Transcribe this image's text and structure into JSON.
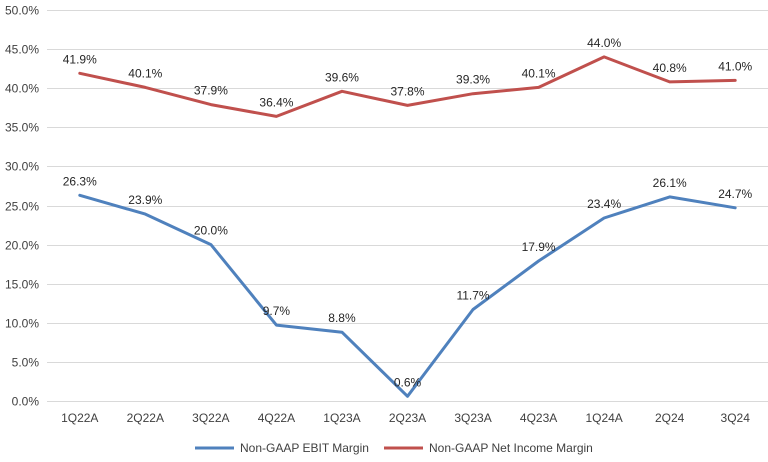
{
  "chart_data": {
    "type": "line",
    "categories": [
      "1Q22A",
      "2Q22A",
      "3Q22A",
      "4Q22A",
      "1Q23A",
      "2Q23A",
      "3Q23A",
      "4Q23A",
      "1Q24A",
      "2Q24",
      "3Q24"
    ],
    "series": [
      {
        "name": "Non-GAAP EBIT Margin",
        "color": "#4F81BD",
        "values": [
          26.3,
          23.9,
          20.0,
          9.7,
          8.8,
          0.6,
          11.7,
          17.9,
          23.4,
          26.1,
          24.7
        ],
        "labels": [
          "26.3%",
          "23.9%",
          "20.0%",
          "9.7%",
          "8.8%",
          "0.6%",
          "11.7%",
          "17.9%",
          "23.4%",
          "26.1%",
          "24.7%"
        ]
      },
      {
        "name": "Non-GAAP Net Income Margin",
        "color": "#C0504D",
        "values": [
          41.9,
          40.1,
          37.9,
          36.4,
          39.6,
          37.8,
          39.3,
          40.1,
          44.0,
          40.8,
          41.0
        ],
        "labels": [
          "41.9%",
          "40.1%",
          "37.9%",
          "36.4%",
          "39.6%",
          "37.8%",
          "39.3%",
          "40.1%",
          "44.0%",
          "40.8%",
          "41.0%"
        ]
      }
    ],
    "ylim": [
      0,
      50
    ],
    "yticks": [
      0,
      5,
      10,
      15,
      20,
      25,
      30,
      35,
      40,
      45,
      50
    ],
    "ytick_labels": [
      "0.0%",
      "5.0%",
      "10.0%",
      "15.0%",
      "20.0%",
      "25.0%",
      "30.0%",
      "35.0%",
      "40.0%",
      "45.0%",
      "50.0%"
    ],
    "grid": true,
    "legend_position": "bottom"
  }
}
